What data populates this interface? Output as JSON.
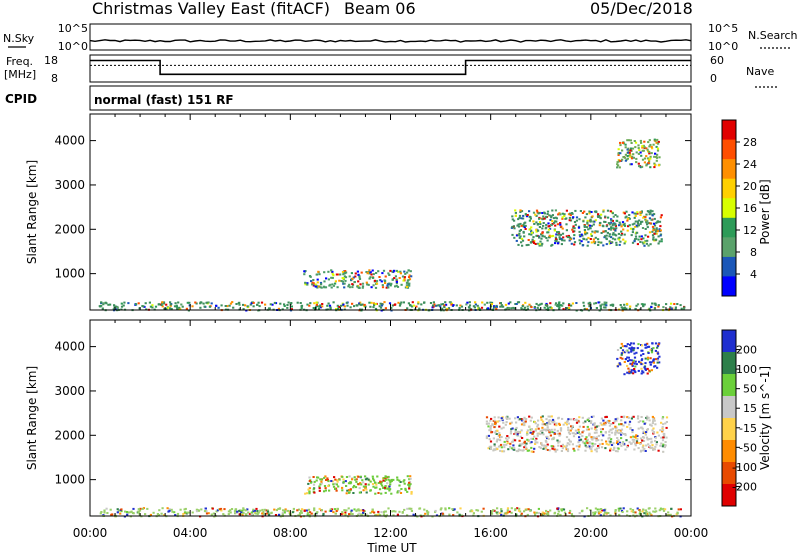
{
  "chart_data": {
    "type": "heatmap",
    "title": "Christmas Valley East (fitACF)",
    "beam_label": "Beam 06",
    "date": "05/Dec/2018",
    "cpid_label": "CPID",
    "cpid_text": "normal (fast) 151 RF",
    "xlabel": "Time UT",
    "x_ticks": [
      "00:00",
      "04:00",
      "08:00",
      "12:00",
      "16:00",
      "20:00",
      "00:00"
    ],
    "xlim_hours": [
      0,
      24
    ],
    "nsky": {
      "label": "N.Sky",
      "ticks": [
        "10^5",
        "10^0"
      ],
      "right_label": "N.Search",
      "right_ticks": [
        "10^5",
        "10^0"
      ]
    },
    "freq": {
      "label_line1": "Freq.",
      "label_line2": "[MHz]",
      "ticks": [
        "18",
        "8"
      ],
      "ylim": [
        8,
        18
      ],
      "right_label": "Nave",
      "right_ticks": [
        "60",
        "0"
      ],
      "right_ylim": [
        0,
        60
      ],
      "steps": [
        {
          "start": 0.0,
          "end": 2.8,
          "mhz": 16.5
        },
        {
          "start": 2.8,
          "end": 15.0,
          "mhz": 10.5
        },
        {
          "start": 15.0,
          "end": 24.0,
          "mhz": 16.5
        }
      ],
      "nave_level": 38
    },
    "panels": [
      {
        "id": "power",
        "ylabel": "Slant Range [km]",
        "yticks": [
          1000,
          2000,
          3000,
          4000
        ],
        "ylim": [
          180,
          4600
        ],
        "colorbar": {
          "label": "Power [dB]",
          "tick_labels": [
            "28",
            "24",
            "20",
            "16",
            "12",
            "8",
            "4"
          ],
          "colors": [
            "#e10000",
            "#ff4e00",
            "#ff8f00",
            "#ffd000",
            "#d8ff00",
            "#2d9b58",
            "#5aa26b",
            "#1b57b8",
            "#0000ff"
          ]
        },
        "regions": [
          {
            "name": "near-range band",
            "t0": 0.3,
            "t1": 23.8,
            "r0": 190,
            "r1": 380,
            "color": "#3b8e5a"
          },
          {
            "name": "daytime patch",
            "t0": 8.5,
            "t1": 12.8,
            "r0": 700,
            "r1": 1100,
            "color": "#4a9b66"
          },
          {
            "name": "evening band",
            "t0": 16.8,
            "t1": 22.8,
            "r0": 1650,
            "r1": 2450,
            "color": "#3f8f60"
          },
          {
            "name": "far-range patch",
            "t0": 21.0,
            "t1": 22.7,
            "r0": 3400,
            "r1": 4050,
            "color": "#6aaa55"
          }
        ]
      },
      {
        "id": "velocity",
        "ylabel": "Slant Range [km]",
        "yticks": [
          1000,
          2000,
          3000,
          4000
        ],
        "ylim": [
          180,
          4600
        ],
        "colorbar": {
          "label": "Velocity [m s^-1]",
          "tick_labels": [
            "200",
            "100",
            "50",
            "15",
            "-15",
            "-50",
            "-100",
            "-200"
          ],
          "colors": [
            "#1f2fcf",
            "#2d7f4a",
            "#6bd03a",
            "#c8c8c8",
            "#ffd24a",
            "#ff8c00",
            "#e84a00",
            "#e00000"
          ]
        },
        "regions": [
          {
            "name": "near-range band",
            "t0": 0.3,
            "t1": 23.8,
            "r0": 190,
            "r1": 380,
            "color": "#9bd06a"
          },
          {
            "name": "daytime patch",
            "t0": 8.5,
            "t1": 12.8,
            "r0": 700,
            "r1": 1100,
            "color": "#6cc93a"
          },
          {
            "name": "evening band",
            "t0": 15.8,
            "t1": 23.0,
            "r0": 1650,
            "r1": 2450,
            "color": "#c8c8c0"
          },
          {
            "name": "far-range patch",
            "t0": 21.0,
            "t1": 22.7,
            "r0": 3400,
            "r1": 4100,
            "color": "#1f2fd6"
          }
        ]
      }
    ]
  }
}
